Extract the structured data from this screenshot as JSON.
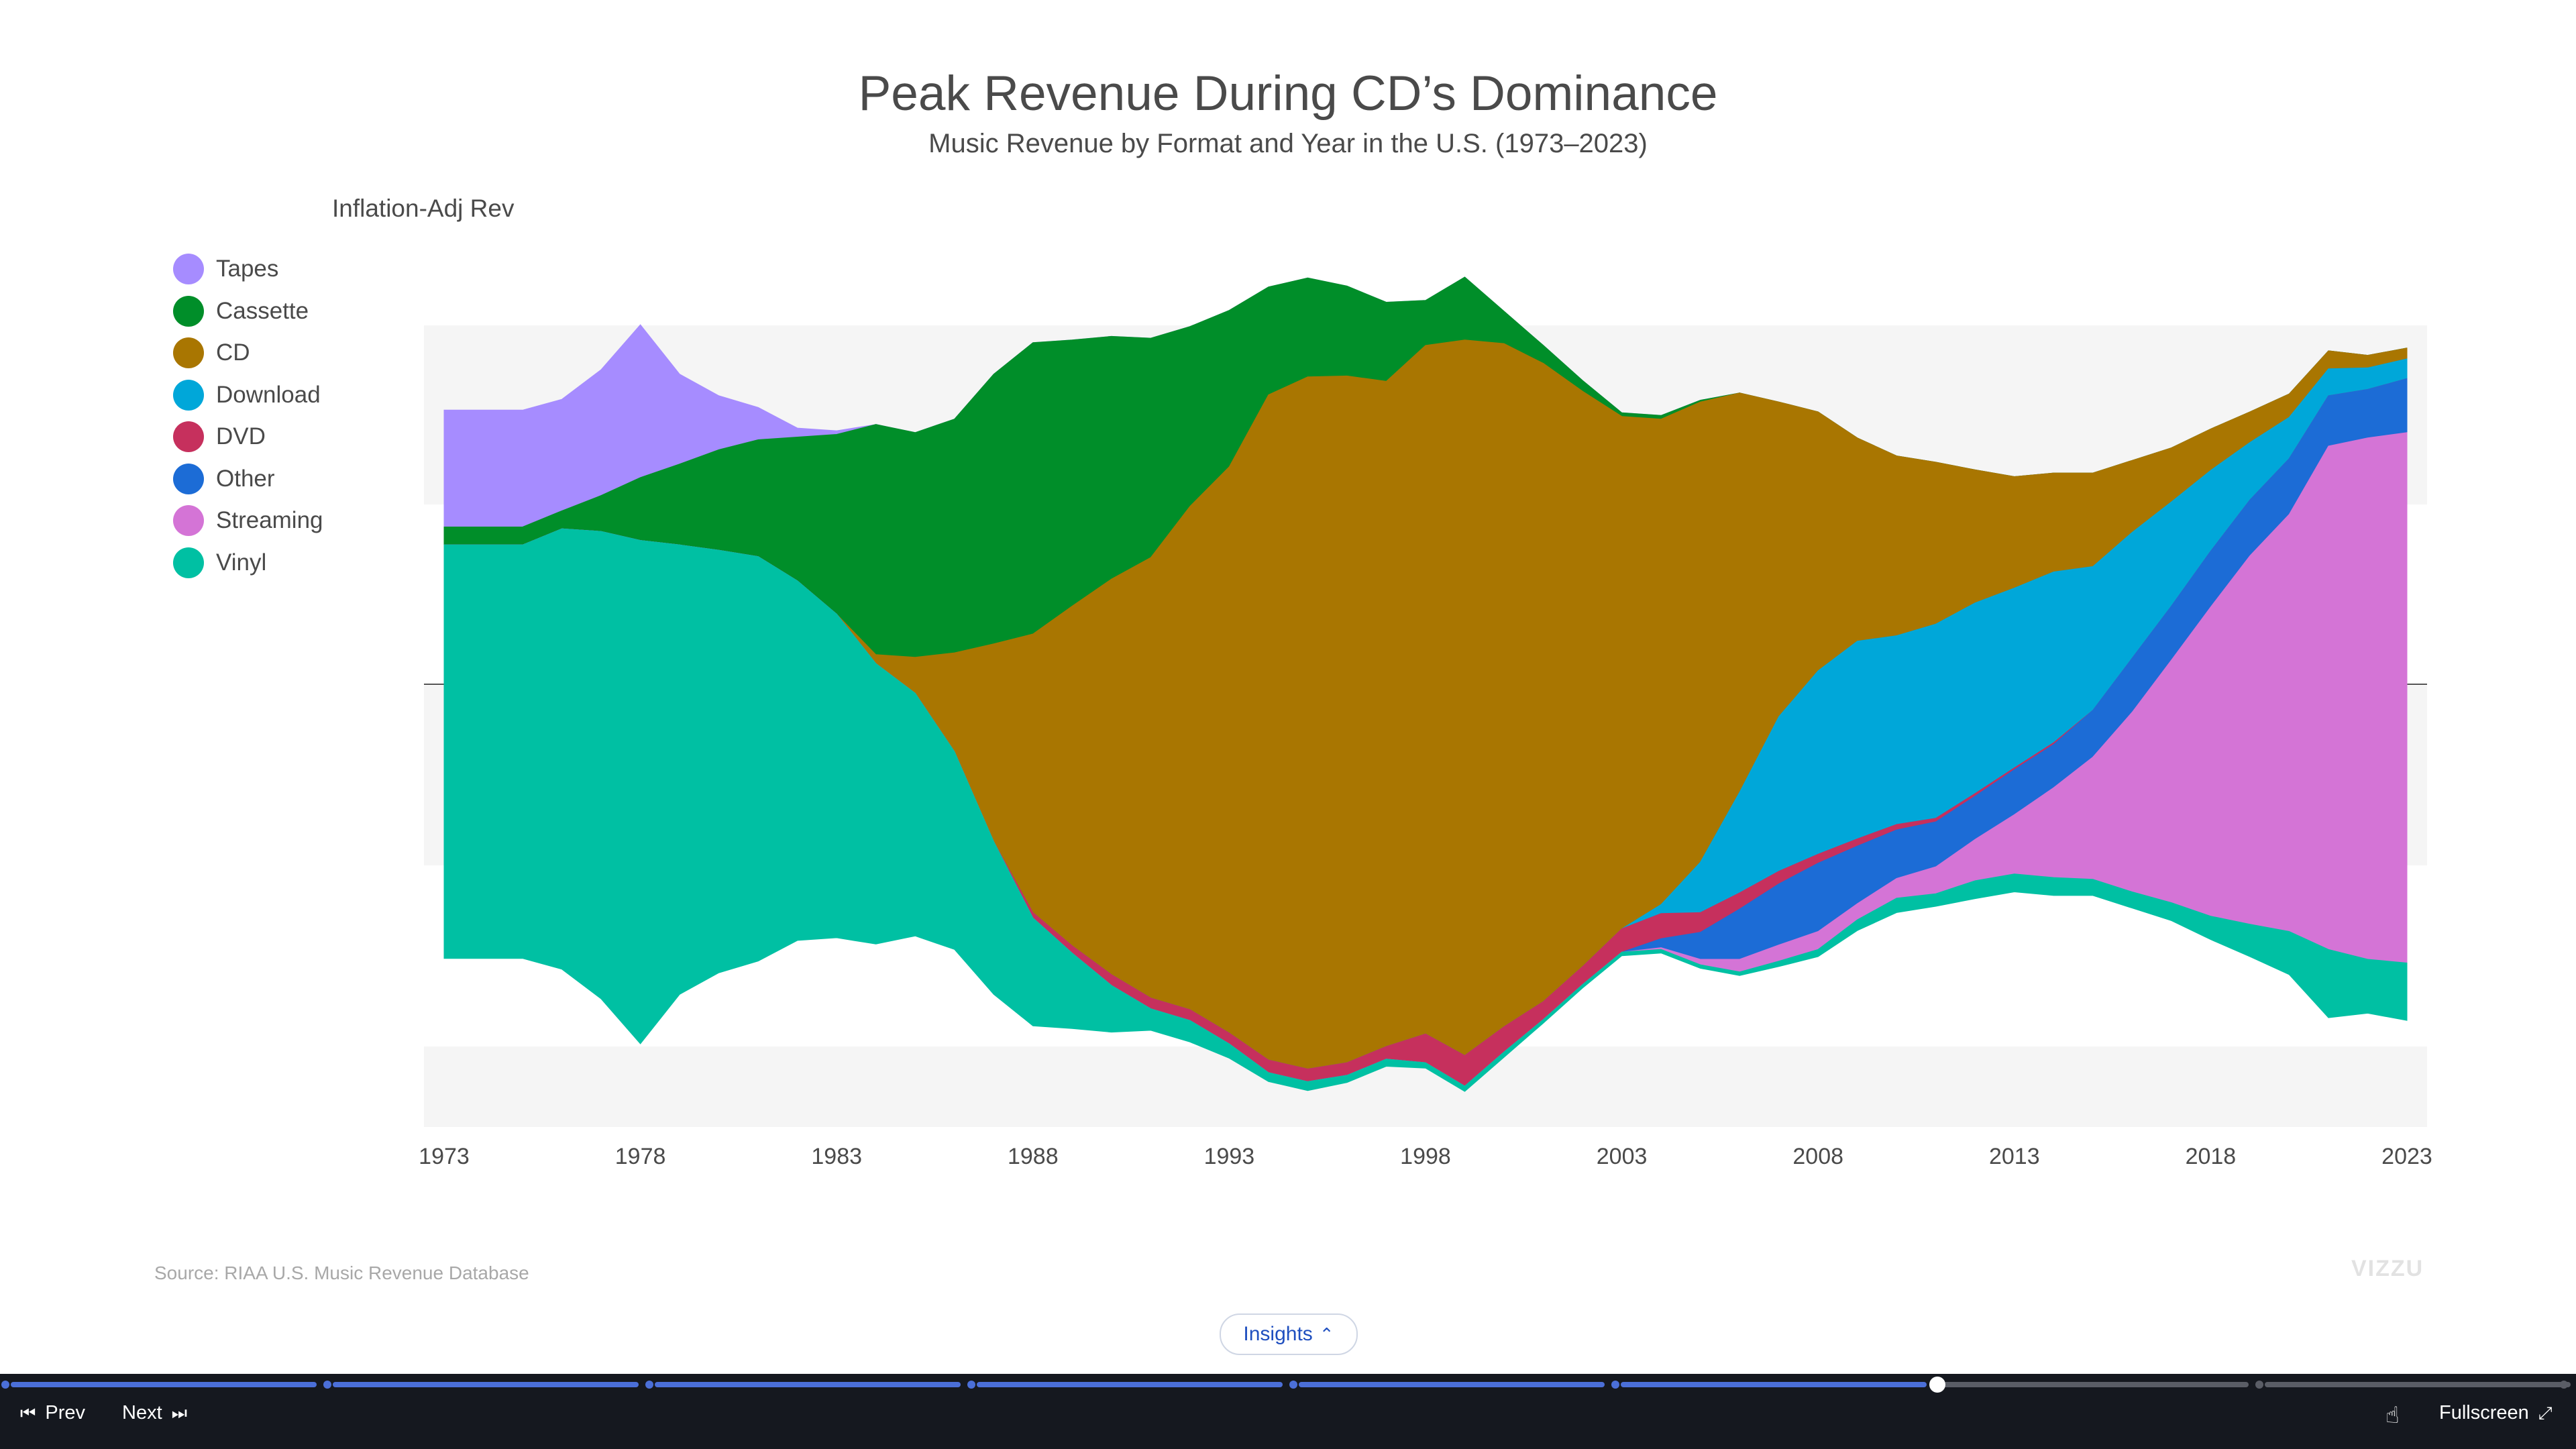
{
  "header": {
    "title": "Peak Revenue During CD’s Dominance",
    "subtitle": "Music Revenue by Format and Year in the U.S. (1973–2023)"
  },
  "footer": {
    "source": "Source: RIAA U.S. Music Revenue Database",
    "logo": "VIZZU",
    "insights_label": "Insights"
  },
  "player": {
    "prev_label": "Prev",
    "next_label": "Next",
    "fullscreen_label": "Fullscreen",
    "steps_total": 8,
    "current_step": 6,
    "accent_color": "#4b6fd8"
  },
  "chart_data": {
    "type": "area",
    "stacking": "streamgraph (centered)",
    "title": "Peak Revenue During CD’s Dominance",
    "subtitle": "Music Revenue by Format and Year in the U.S. (1973–2023)",
    "ylabel": "Inflation-Adj Rev",
    "xlabel": "",
    "x_ticks": [
      "1973",
      "1978",
      "1983",
      "1988",
      "1993",
      "1998",
      "2003",
      "2008",
      "2013",
      "2018",
      "2023"
    ],
    "legend_placement": "left",
    "years": [
      1973,
      1974,
      1975,
      1976,
      1977,
      1978,
      1979,
      1980,
      1981,
      1982,
      1983,
      1984,
      1985,
      1986,
      1987,
      1988,
      1989,
      1990,
      1991,
      1992,
      1993,
      1994,
      1995,
      1996,
      1997,
      1998,
      1999,
      2000,
      2001,
      2002,
      2003,
      2004,
      2005,
      2006,
      2007,
      2008,
      2009,
      2010,
      2011,
      2012,
      2013,
      2014,
      2015,
      2016,
      2017,
      2018,
      2019,
      2020,
      2021,
      2022,
      2023
    ],
    "series": [
      {
        "name": "Tapes",
        "color": "#a68cff",
        "values": [
          650,
          650,
          650,
          620,
          700,
          850,
          500,
          300,
          180,
          50,
          20,
          0,
          0,
          0,
          0,
          0,
          0,
          0,
          0,
          0,
          0,
          0,
          0,
          0,
          0,
          0,
          0,
          0,
          0,
          0,
          0,
          0,
          0,
          0,
          0,
          0,
          0,
          0,
          0,
          0,
          0,
          0,
          0,
          0,
          0,
          0,
          0,
          0,
          0,
          0,
          0
        ]
      },
      {
        "name": "Cassette",
        "color": "#008e29",
        "values": [
          100,
          100,
          100,
          100,
          200,
          350,
          450,
          560,
          650,
          800,
          1000,
          1280,
          1250,
          1300,
          1500,
          1620,
          1480,
          1350,
          1220,
          1000,
          870,
          600,
          550,
          500,
          440,
          250,
          350,
          180,
          100,
          60,
          20,
          20,
          10,
          0,
          0,
          0,
          0,
          0,
          0,
          0,
          0,
          0,
          0,
          0,
          0,
          0,
          0,
          0,
          0,
          0,
          0
        ]
      },
      {
        "name": "CD",
        "color": "#a97601",
        "values": [
          0,
          0,
          0,
          0,
          0,
          0,
          0,
          0,
          0,
          0,
          0,
          50,
          200,
          550,
          1100,
          1550,
          1890,
          2200,
          2450,
          2800,
          3150,
          3700,
          3850,
          3820,
          3700,
          3830,
          3980,
          3800,
          3550,
          3200,
          2850,
          2700,
          2560,
          2220,
          1750,
          1440,
          1130,
          1000,
          900,
          740,
          620,
          550,
          520,
          400,
          300,
          230,
          170,
          130,
          100,
          70,
          60
        ]
      },
      {
        "name": "Download",
        "color": "#00a7d9",
        "values": [
          0,
          0,
          0,
          0,
          0,
          0,
          0,
          0,
          0,
          0,
          0,
          0,
          0,
          0,
          0,
          0,
          0,
          0,
          0,
          0,
          0,
          0,
          0,
          0,
          0,
          0,
          0,
          0,
          0,
          0,
          0,
          50,
          280,
          560,
          860,
          1020,
          1100,
          1050,
          1080,
          1060,
          1000,
          950,
          800,
          700,
          580,
          450,
          320,
          230,
          150,
          120,
          110
        ]
      },
      {
        "name": "DVD",
        "color": "#c6305d",
        "values": [
          0,
          0,
          0,
          0,
          0,
          0,
          0,
          0,
          0,
          0,
          0,
          0,
          0,
          0,
          0,
          30,
          40,
          60,
          60,
          60,
          60,
          70,
          70,
          70,
          70,
          160,
          170,
          140,
          100,
          100,
          130,
          140,
          110,
          90,
          70,
          50,
          40,
          30,
          20,
          15,
          10,
          10,
          0,
          0,
          0,
          0,
          0,
          0,
          0,
          0,
          0
        ]
      },
      {
        "name": "Other",
        "color": "#1c6cd6",
        "values": [
          0,
          0,
          0,
          0,
          0,
          0,
          0,
          0,
          0,
          0,
          0,
          0,
          0,
          0,
          0,
          0,
          0,
          0,
          0,
          0,
          0,
          0,
          0,
          0,
          0,
          0,
          0,
          0,
          0,
          0,
          0,
          50,
          150,
          280,
          340,
          380,
          320,
          270,
          250,
          240,
          250,
          240,
          260,
          300,
          300,
          310,
          310,
          310,
          280,
          270,
          300
        ]
      },
      {
        "name": "Streaming",
        "color": "#d474d6",
        "values": [
          0,
          0,
          0,
          0,
          0,
          0,
          0,
          0,
          0,
          0,
          0,
          0,
          0,
          0,
          0,
          0,
          0,
          0,
          0,
          0,
          0,
          0,
          0,
          0,
          0,
          0,
          0,
          0,
          0,
          0,
          0,
          10,
          30,
          70,
          90,
          100,
          90,
          110,
          150,
          230,
          330,
          500,
          680,
          1000,
          1350,
          1720,
          2050,
          2320,
          2800,
          2900,
          2950
        ]
      },
      {
        "name": "Vinyl",
        "color": "#00c0a3",
        "values": [
          2300,
          2300,
          2300,
          2450,
          2600,
          2800,
          2500,
          2350,
          2250,
          2000,
          1800,
          1560,
          1350,
          1100,
          850,
          600,
          420,
          260,
          120,
          120,
          80,
          50,
          50,
          40,
          40,
          30,
          30,
          30,
          20,
          20,
          20,
          20,
          20,
          20,
          30,
          40,
          60,
          80,
          70,
          100,
          100,
          100,
          90,
          90,
          100,
          130,
          180,
          240,
          380,
          300,
          320
        ]
      }
    ]
  }
}
